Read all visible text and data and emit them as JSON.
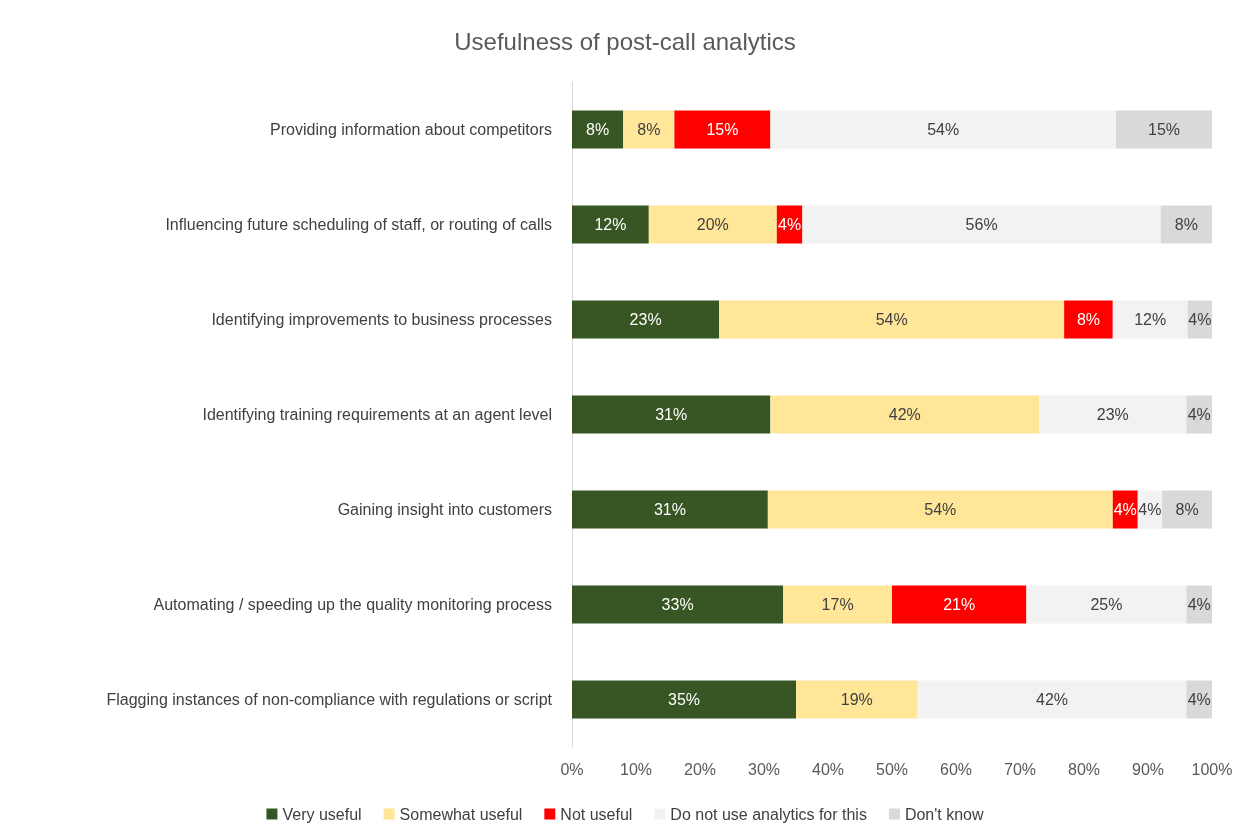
{
  "chart_data": {
    "type": "bar",
    "title": "Usefulness of post-call analytics",
    "orientation": "horizontal",
    "stacked": true,
    "legend": "bottom",
    "grid": false,
    "categories": [
      "Providing information about competitors",
      "Influencing future scheduling of staff, or routing of calls",
      "Identifying improvements to business processes",
      "Identifying training requirements at an agent level",
      "Gaining insight into customers",
      "Automating / speeding up the quality monitoring process",
      "Flagging instances of non-compliance with regulations or script"
    ],
    "xlim": [
      0,
      100
    ],
    "xticks": [
      {
        "value": 0,
        "label": "0%"
      },
      {
        "value": 10,
        "label": "10%"
      },
      {
        "value": 20,
        "label": "20%"
      },
      {
        "value": 30,
        "label": "30%"
      },
      {
        "value": 40,
        "label": "40%"
      },
      {
        "value": 50,
        "label": "50%"
      },
      {
        "value": 60,
        "label": "60%"
      },
      {
        "value": 70,
        "label": "70%"
      },
      {
        "value": 80,
        "label": "80%"
      },
      {
        "value": 90,
        "label": "90%"
      },
      {
        "value": 100,
        "label": "100%"
      }
    ],
    "series": [
      {
        "name": "Very useful",
        "color": "#375623",
        "values": [
          8,
          12,
          23,
          31,
          30.6,
          33,
          35
        ],
        "value_labels": [
          "8%",
          "12%",
          "23%",
          "31%",
          "31%",
          "33%",
          "35%"
        ]
      },
      {
        "name": "Somewhat useful",
        "color": "#ffe699",
        "values": [
          8,
          20,
          53.9,
          42,
          53.9,
          17,
          19
        ],
        "value_labels": [
          "8%",
          "20%",
          "54%",
          "42%",
          "54%",
          "17%",
          "19%"
        ]
      },
      {
        "name": "Not useful",
        "color": "#ff0000",
        "values": [
          15,
          4,
          7.6,
          null,
          3.9,
          21,
          null
        ],
        "value_labels": [
          "15%",
          "4%",
          "8%",
          null,
          "4%",
          "21%",
          null
        ]
      },
      {
        "name": "Do not use analytics for this",
        "color": "#f2f2f2",
        "values": [
          54,
          56,
          11.7,
          23,
          3.8,
          25,
          42
        ],
        "value_labels": [
          "54%",
          "56%",
          "12%",
          "23%",
          "4%",
          "25%",
          "42%"
        ]
      },
      {
        "name": "Don't know",
        "color": "#d9d9d9",
        "values": [
          15,
          8,
          3.8,
          4,
          7.8,
          4,
          4
        ],
        "value_labels": [
          "15%",
          "8%",
          "4%",
          "4%",
          "8%",
          "4%",
          "4%"
        ]
      }
    ]
  }
}
